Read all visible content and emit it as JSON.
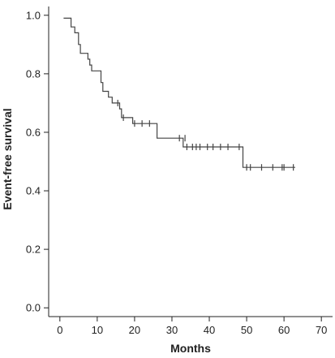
{
  "chart_data": {
    "type": "line",
    "title": "",
    "xlabel": "Months",
    "ylabel": "Event-free survival",
    "xlim": [
      -3,
      73
    ],
    "ylim": [
      -0.03,
      1.03
    ],
    "x_ticks": [
      0,
      10,
      20,
      30,
      40,
      50,
      60,
      70
    ],
    "y_ticks": [
      0.0,
      0.2,
      0.4,
      0.6,
      0.8,
      1.0
    ],
    "x_tick_labels": [
      "0",
      "10",
      "20",
      "30",
      "40",
      "50",
      "60",
      "70"
    ],
    "y_tick_labels": [
      "0.0",
      "0.2",
      "0.4",
      "0.6",
      "0.8",
      "1.0"
    ],
    "grid": false,
    "series": [
      {
        "step_points": [
          [
            1,
            0.99
          ],
          [
            3,
            0.99
          ],
          [
            3,
            0.96
          ],
          [
            4,
            0.96
          ],
          [
            4,
            0.94
          ],
          [
            5,
            0.94
          ],
          [
            5,
            0.9
          ],
          [
            5.5,
            0.9
          ],
          [
            5.5,
            0.87
          ],
          [
            7.5,
            0.87
          ],
          [
            7.5,
            0.85
          ],
          [
            8,
            0.85
          ],
          [
            8,
            0.83
          ],
          [
            8.5,
            0.83
          ],
          [
            8.5,
            0.81
          ],
          [
            11,
            0.81
          ],
          [
            11,
            0.77
          ],
          [
            11.5,
            0.77
          ],
          [
            11.5,
            0.74
          ],
          [
            13,
            0.74
          ],
          [
            13,
            0.72
          ],
          [
            14,
            0.72
          ],
          [
            14,
            0.7
          ],
          [
            16,
            0.7
          ],
          [
            16,
            0.68
          ],
          [
            16.5,
            0.68
          ],
          [
            16.5,
            0.65
          ],
          [
            19.5,
            0.65
          ],
          [
            19.5,
            0.63
          ],
          [
            26,
            0.63
          ],
          [
            26,
            0.58
          ],
          [
            33,
            0.58
          ],
          [
            33,
            0.55
          ],
          [
            49,
            0.55
          ],
          [
            49,
            0.48
          ],
          [
            63,
            0.48
          ]
        ],
        "censored_points": [
          [
            15.5,
            0.7
          ],
          [
            17,
            0.65
          ],
          [
            20,
            0.63
          ],
          [
            22,
            0.63
          ],
          [
            24,
            0.63
          ],
          [
            32,
            0.58
          ],
          [
            33.5,
            0.58
          ],
          [
            34,
            0.55
          ],
          [
            35.5,
            0.55
          ],
          [
            36.5,
            0.55
          ],
          [
            37.5,
            0.55
          ],
          [
            39.5,
            0.55
          ],
          [
            41,
            0.55
          ],
          [
            43,
            0.55
          ],
          [
            45,
            0.55
          ],
          [
            48,
            0.55
          ],
          [
            50,
            0.48
          ],
          [
            51,
            0.48
          ],
          [
            54,
            0.48
          ],
          [
            57,
            0.48
          ],
          [
            59.5,
            0.48
          ],
          [
            60,
            0.48
          ],
          [
            62.5,
            0.48
          ]
        ]
      }
    ]
  }
}
